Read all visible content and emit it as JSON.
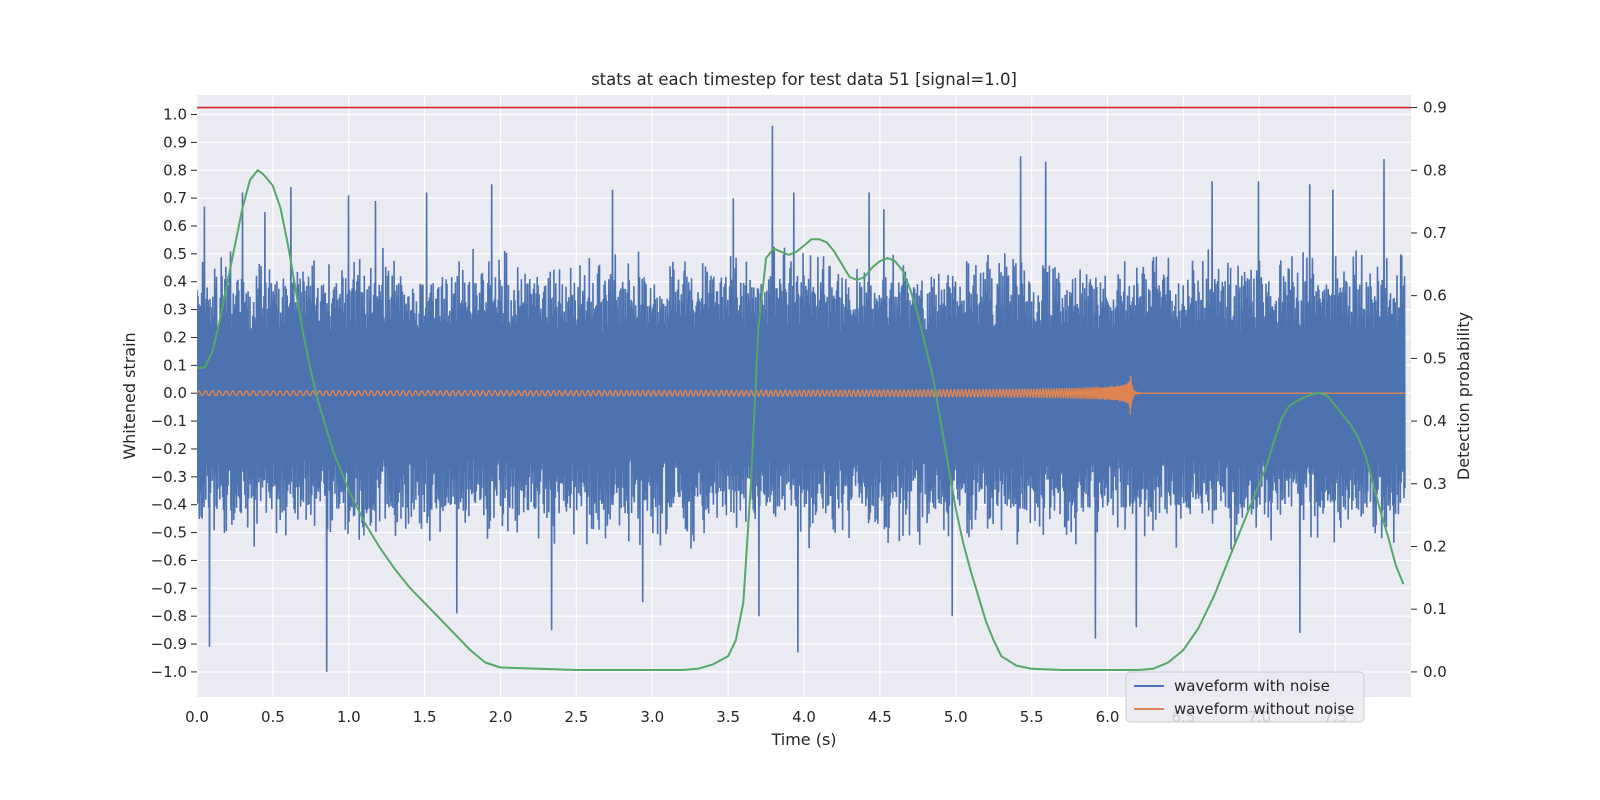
{
  "chart_data": {
    "type": "line",
    "title": "stats at each timestep for test data 51 [signal=1.0]",
    "xlabel": "Time (s)",
    "ylabel_left": "Whitened strain",
    "ylabel_right": "Detection probability",
    "xlim": [
      0.0,
      8.0
    ],
    "ylim_left": [
      -1.09,
      1.07
    ],
    "ylim_right": [
      -0.04,
      0.92
    ],
    "x_ticks": [
      0.0,
      0.5,
      1.0,
      1.5,
      2.0,
      2.5,
      3.0,
      3.5,
      4.0,
      4.5,
      5.0,
      5.5,
      6.0,
      6.5,
      7.0,
      7.5
    ],
    "x_tick_labels": [
      "0.0",
      "0.5",
      "1.0",
      "1.5",
      "2.0",
      "2.5",
      "3.0",
      "3.5",
      "4.0",
      "4.5",
      "5.0",
      "5.5",
      "6.0",
      "6.5",
      "7.0",
      "7.5"
    ],
    "y_left_ticks": [
      1.0,
      0.9,
      0.8,
      0.7,
      0.6,
      0.5,
      0.4,
      0.3,
      0.2,
      0.1,
      0.0,
      -0.1,
      -0.2,
      -0.3,
      -0.4,
      -0.5,
      -0.6,
      -0.7,
      -0.8,
      -0.9,
      -1.0
    ],
    "y_left_tick_labels": [
      "1.0",
      "0.9",
      "0.8",
      "0.7",
      "0.6",
      "0.5",
      "0.4",
      "0.3",
      "0.2",
      "0.1",
      "0.0",
      "−0.1",
      "−0.2",
      "−0.3",
      "−0.4",
      "−0.5",
      "−0.6",
      "−0.7",
      "−0.8",
      "−0.9",
      "−1.0"
    ],
    "y_right_ticks": [
      0.9,
      0.8,
      0.7,
      0.6,
      0.5,
      0.4,
      0.3,
      0.2,
      0.1,
      0.0
    ],
    "y_right_tick_labels": [
      "0.9",
      "0.8",
      "0.7",
      "0.6",
      "0.5",
      "0.4",
      "0.3",
      "0.2",
      "0.1",
      "0.0"
    ],
    "grid": true,
    "legend_position": "lower-right",
    "threshold": {
      "axis": "right",
      "value": 0.9,
      "color": "#d62728"
    },
    "series": [
      {
        "name": "waveform with noise",
        "axis": "left",
        "color": "#4c72b0",
        "kind": "noise",
        "typical_envelope": [
          -0.42,
          0.4
        ],
        "x": [
          0.05,
          0.08,
          0.3,
          0.38,
          0.45,
          0.62,
          0.86,
          1.0,
          1.18,
          1.52,
          1.72,
          1.95,
          2.35,
          2.75,
          2.95,
          3.55,
          3.72,
          3.81,
          3.95,
          3.98,
          4.45,
          4.55,
          5.0,
          5.45,
          5.62,
          5.95,
          6.22,
          6.72,
          7.03,
          7.3,
          7.37,
          7.52,
          7.86
        ],
        "peaks": [
          0.67,
          -0.91,
          0.72,
          -0.55,
          0.65,
          0.74,
          -1.0,
          0.71,
          0.69,
          0.72,
          -0.79,
          0.75,
          -0.85,
          0.73,
          -0.75,
          0.7,
          -0.8,
          0.96,
          0.72,
          -0.93,
          0.72,
          0.66,
          -0.8,
          0.85,
          0.83,
          -0.88,
          -0.84,
          0.76,
          0.76,
          -0.86,
          0.75,
          0.73,
          0.84
        ]
      },
      {
        "name": "waveform without noise",
        "axis": "left",
        "color": "#dd8452",
        "kind": "chirp",
        "merger_time": 6.15,
        "peak_amplitude": 0.06,
        "ringdown_peak": 0.08
      },
      {
        "name": "",
        "axis": "right",
        "color": "#55a868",
        "kind": "line",
        "x": [
          0.0,
          0.05,
          0.1,
          0.15,
          0.2,
          0.25,
          0.3,
          0.35,
          0.4,
          0.43,
          0.45,
          0.5,
          0.55,
          0.6,
          0.65,
          0.7,
          0.75,
          0.8,
          0.9,
          1.0,
          1.1,
          1.2,
          1.3,
          1.4,
          1.5,
          1.6,
          1.7,
          1.8,
          1.9,
          2.0,
          2.5,
          3.0,
          3.2,
          3.3,
          3.4,
          3.5,
          3.55,
          3.6,
          3.65,
          3.7,
          3.75,
          3.8,
          3.85,
          3.9,
          3.95,
          4.0,
          4.05,
          4.1,
          4.15,
          4.2,
          4.25,
          4.3,
          4.35,
          4.4,
          4.45,
          4.5,
          4.55,
          4.6,
          4.65,
          4.7,
          4.75,
          4.8,
          4.85,
          4.9,
          4.95,
          5.0,
          5.05,
          5.1,
          5.15,
          5.2,
          5.25,
          5.3,
          5.4,
          5.5,
          5.7,
          6.0,
          6.2,
          6.3,
          6.4,
          6.5,
          6.6,
          6.7,
          6.8,
          6.9,
          7.0,
          7.05,
          7.1,
          7.15,
          7.2,
          7.25,
          7.3,
          7.35,
          7.4,
          7.45,
          7.5,
          7.55,
          7.6,
          7.65,
          7.7,
          7.75,
          7.8,
          7.85,
          7.9,
          7.95
        ],
        "values": [
          0.485,
          0.485,
          0.51,
          0.56,
          0.62,
          0.68,
          0.74,
          0.785,
          0.8,
          0.795,
          0.79,
          0.775,
          0.74,
          0.68,
          0.61,
          0.54,
          0.48,
          0.43,
          0.35,
          0.29,
          0.24,
          0.2,
          0.165,
          0.135,
          0.11,
          0.085,
          0.06,
          0.035,
          0.015,
          0.007,
          0.003,
          0.003,
          0.003,
          0.005,
          0.012,
          0.025,
          0.05,
          0.11,
          0.3,
          0.55,
          0.66,
          0.675,
          0.67,
          0.665,
          0.67,
          0.68,
          0.69,
          0.69,
          0.685,
          0.67,
          0.65,
          0.63,
          0.625,
          0.63,
          0.645,
          0.655,
          0.66,
          0.655,
          0.64,
          0.61,
          0.57,
          0.52,
          0.47,
          0.4,
          0.33,
          0.26,
          0.205,
          0.16,
          0.12,
          0.08,
          0.05,
          0.025,
          0.01,
          0.005,
          0.003,
          0.003,
          0.003,
          0.005,
          0.015,
          0.035,
          0.07,
          0.12,
          0.18,
          0.24,
          0.3,
          0.33,
          0.37,
          0.405,
          0.425,
          0.432,
          0.438,
          0.443,
          0.445,
          0.44,
          0.425,
          0.41,
          0.395,
          0.375,
          0.345,
          0.3,
          0.255,
          0.215,
          0.17,
          0.14
        ]
      }
    ],
    "legend": [
      {
        "label": "waveform with noise",
        "color": "#4c72b0"
      },
      {
        "label": "waveform without noise",
        "color": "#dd8452"
      }
    ]
  }
}
